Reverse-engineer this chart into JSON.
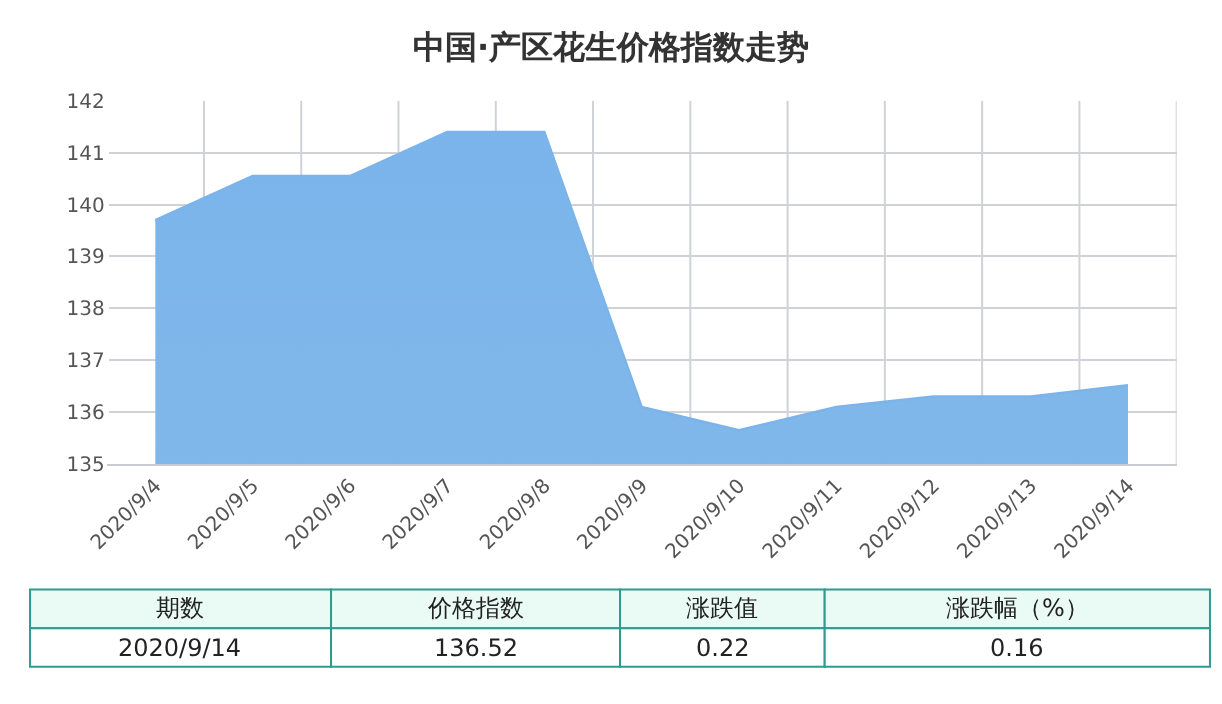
{
  "chart_data": {
    "type": "area",
    "title": "中国·产区花生价格指数走势",
    "categories": [
      "2020/9/4",
      "2020/9/5",
      "2020/9/6",
      "2020/9/7",
      "2020/9/8",
      "2020/9/9",
      "2020/9/10",
      "2020/9/11",
      "2020/9/12",
      "2020/9/13",
      "2020/9/14"
    ],
    "series": [
      {
        "color": "#7ab4ea",
        "values": [
          139.7,
          140.55,
          140.55,
          141.4,
          141.4,
          136.1,
          135.65,
          136.1,
          136.3,
          136.3,
          136.52
        ]
      }
    ],
    "ylim": [
      135,
      142
    ],
    "yticks": [
      135,
      136,
      137,
      138,
      139,
      140,
      141,
      142
    ],
    "grid": true,
    "legend": false,
    "annotations": [
      "期数",
      "价格指数",
      "涨跌值",
      "涨跌幅（%）",
      "2020/9/14",
      "136.52",
      "0.22",
      "0.16"
    ]
  }
}
